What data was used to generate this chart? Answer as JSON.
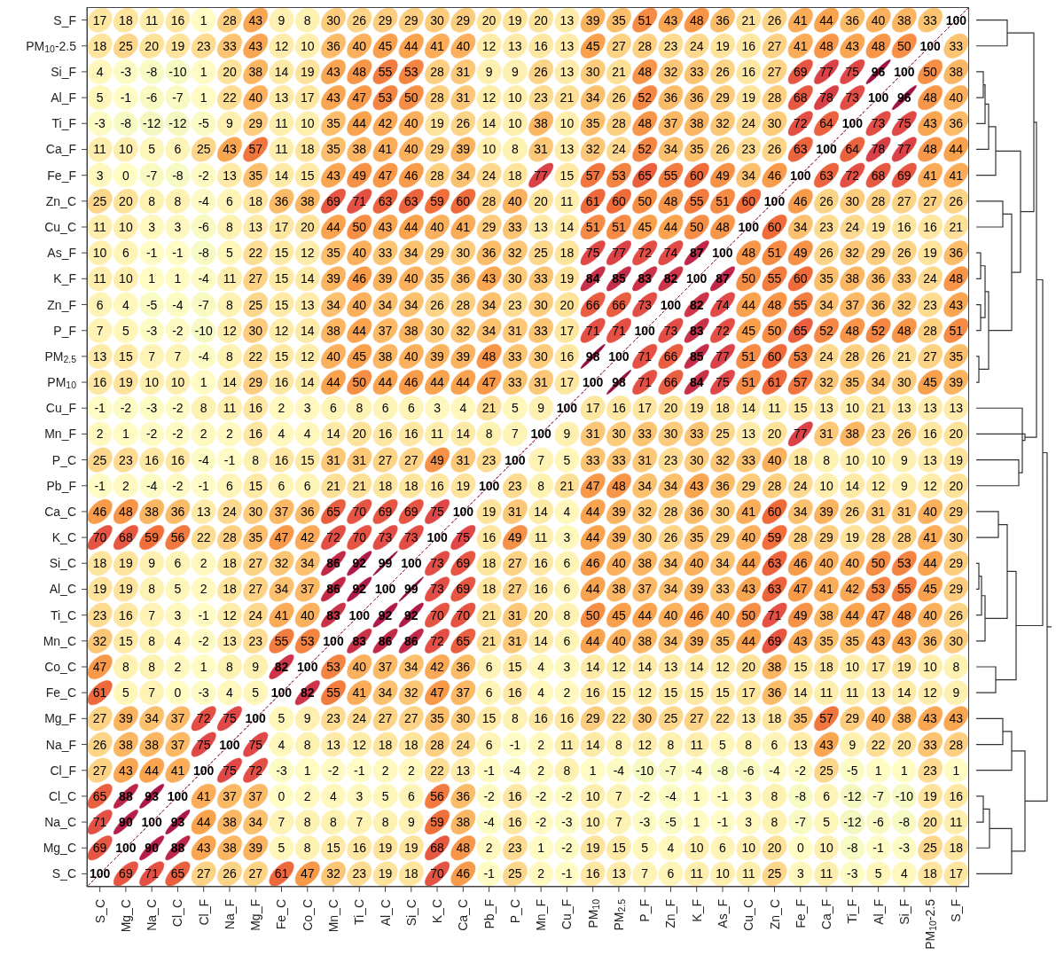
{
  "chart_data": {
    "type": "heatmap",
    "data_labels": true,
    "categories": [
      "S_C",
      "Mg_C",
      "Na_C",
      "Cl_C",
      "Cl_F",
      "Na_F",
      "Mg_F",
      "Fe_C",
      "Co_C",
      "Mn_C",
      "Ti_C",
      "Al_C",
      "Si_C",
      "K_C",
      "Ca_C",
      "Pb_F",
      "P_C",
      "Mn_F",
      "Cu_F",
      "PM$_{10}$",
      "PM$_{2.5}$",
      "P_F",
      "Zn_F",
      "K_F",
      "As_F",
      "Cu_C",
      "Zn_C",
      "Fe_F",
      "Ca_F",
      "Ti_F",
      "Al_F",
      "Si_F",
      "PM$_{10}$-2.5",
      "S_F"
    ],
    "y_categories": [
      "S_F",
      "PM$_{10}$-2.5",
      "Si_F",
      "Al_F",
      "Ti_F",
      "Ca_F",
      "Fe_F",
      "Zn_C",
      "Cu_C",
      "As_F",
      "K_F",
      "Zn_F",
      "P_F",
      "PM$_{2.5}$",
      "PM$_{10}$",
      "Cu_F",
      "Mn_F",
      "P_C",
      "Pb_F",
      "Ca_C",
      "K_C",
      "Si_C",
      "Al_C",
      "Ti_C",
      "Mn_C",
      "Co_C",
      "Fe_C",
      "Mg_F",
      "Na_F",
      "Cl_F",
      "Cl_C",
      "Na_C",
      "Mg_C",
      "S_C"
    ],
    "cells": [
      [
        17,
        18,
        11,
        16,
        1,
        28,
        43,
        9,
        8,
        30,
        26,
        29,
        29,
        30,
        29,
        20,
        19,
        20,
        13,
        39,
        35,
        51,
        43,
        48,
        36,
        21,
        26,
        41,
        44,
        36,
        40,
        38,
        33,
        100
      ],
      [
        18,
        25,
        20,
        19,
        23,
        33,
        43,
        12,
        10,
        36,
        40,
        45,
        44,
        41,
        40,
        12,
        13,
        16,
        13,
        45,
        27,
        28,
        23,
        24,
        19,
        16,
        27,
        41,
        48,
        43,
        48,
        50,
        100,
        33
      ],
      [
        4,
        -3,
        -8,
        -10,
        1,
        20,
        38,
        14,
        19,
        43,
        48,
        55,
        53,
        28,
        31,
        9,
        9,
        26,
        13,
        30,
        21,
        48,
        32,
        33,
        26,
        16,
        27,
        69,
        77,
        75,
        96,
        100,
        50,
        38
      ],
      [
        5,
        -1,
        -6,
        -7,
        1,
        22,
        40,
        13,
        17,
        43,
        47,
        53,
        50,
        28,
        31,
        12,
        10,
        23,
        21,
        34,
        26,
        52,
        36,
        36,
        29,
        19,
        28,
        68,
        78,
        73,
        100,
        96,
        48,
        40
      ],
      [
        -3,
        -8,
        -12,
        -12,
        -5,
        9,
        29,
        11,
        10,
        35,
        44,
        42,
        40,
        19,
        26,
        14,
        10,
        38,
        10,
        35,
        28,
        48,
        37,
        38,
        32,
        24,
        30,
        72,
        64,
        100,
        73,
        75,
        43,
        36
      ],
      [
        11,
        10,
        5,
        6,
        25,
        43,
        57,
        11,
        18,
        35,
        38,
        41,
        40,
        29,
        39,
        10,
        8,
        31,
        13,
        32,
        24,
        52,
        34,
        35,
        26,
        23,
        26,
        63,
        100,
        64,
        78,
        77,
        48,
        44
      ],
      [
        3,
        0,
        -7,
        -8,
        -2,
        13,
        35,
        14,
        15,
        43,
        49,
        47,
        46,
        28,
        34,
        24,
        18,
        77,
        15,
        57,
        53,
        65,
        55,
        60,
        49,
        34,
        46,
        100,
        63,
        72,
        68,
        69,
        41,
        41
      ],
      [
        25,
        20,
        8,
        8,
        -4,
        6,
        18,
        36,
        38,
        69,
        71,
        63,
        63,
        59,
        60,
        28,
        40,
        20,
        11,
        61,
        60,
        50,
        48,
        55,
        51,
        60,
        100,
        46,
        26,
        30,
        28,
        27,
        27,
        26
      ],
      [
        11,
        10,
        3,
        3,
        -6,
        8,
        13,
        17,
        20,
        44,
        50,
        43,
        44,
        40,
        41,
        29,
        33,
        13,
        14,
        51,
        51,
        45,
        44,
        50,
        48,
        100,
        60,
        34,
        23,
        24,
        19,
        16,
        16,
        21
      ],
      [
        10,
        6,
        -1,
        -1,
        -8,
        5,
        22,
        15,
        12,
        35,
        40,
        33,
        34,
        29,
        30,
        36,
        32,
        25,
        18,
        75,
        77,
        72,
        74,
        87,
        100,
        48,
        51,
        49,
        26,
        32,
        29,
        26,
        19,
        36
      ],
      [
        11,
        10,
        1,
        1,
        -4,
        11,
        27,
        15,
        14,
        39,
        46,
        39,
        40,
        35,
        36,
        43,
        30,
        33,
        19,
        84,
        85,
        83,
        82,
        100,
        87,
        50,
        55,
        60,
        35,
        38,
        36,
        33,
        24,
        48
      ],
      [
        6,
        4,
        -5,
        -4,
        -7,
        8,
        25,
        15,
        13,
        34,
        40,
        34,
        34,
        26,
        28,
        34,
        23,
        30,
        20,
        66,
        66,
        73,
        100,
        82,
        74,
        44,
        48,
        55,
        34,
        37,
        36,
        32,
        23,
        43
      ],
      [
        7,
        5,
        -3,
        -2,
        -10,
        12,
        30,
        12,
        14,
        38,
        44,
        37,
        38,
        30,
        32,
        34,
        31,
        33,
        17,
        71,
        71,
        100,
        73,
        83,
        72,
        45,
        50,
        65,
        52,
        48,
        52,
        48,
        28,
        51
      ],
      [
        13,
        15,
        7,
        7,
        -4,
        8,
        22,
        15,
        12,
        40,
        45,
        38,
        40,
        39,
        39,
        48,
        33,
        30,
        16,
        98,
        100,
        71,
        66,
        85,
        77,
        51,
        60,
        53,
        24,
        28,
        26,
        21,
        27,
        35
      ],
      [
        16,
        19,
        10,
        10,
        1,
        14,
        29,
        16,
        14,
        44,
        50,
        44,
        46,
        44,
        44,
        47,
        33,
        31,
        17,
        100,
        98,
        71,
        66,
        84,
        75,
        51,
        61,
        57,
        32,
        35,
        34,
        30,
        45,
        39
      ],
      [
        -1,
        -2,
        -3,
        -2,
        8,
        11,
        16,
        2,
        3,
        6,
        8,
        6,
        6,
        3,
        4,
        21,
        5,
        9,
        100,
        17,
        16,
        17,
        20,
        19,
        18,
        14,
        11,
        15,
        13,
        10,
        21,
        13,
        13,
        13
      ],
      [
        2,
        1,
        -2,
        -2,
        2,
        2,
        16,
        4,
        4,
        14,
        20,
        16,
        16,
        11,
        14,
        8,
        7,
        100,
        9,
        31,
        30,
        33,
        30,
        33,
        25,
        13,
        20,
        77,
        31,
        38,
        23,
        26,
        16,
        20
      ],
      [
        25,
        23,
        16,
        16,
        -4,
        -1,
        8,
        16,
        15,
        31,
        31,
        27,
        27,
        49,
        31,
        23,
        100,
        7,
        5,
        33,
        33,
        31,
        23,
        30,
        32,
        33,
        40,
        18,
        8,
        10,
        10,
        9,
        13,
        19
      ],
      [
        -1,
        2,
        -4,
        -2,
        -1,
        6,
        15,
        6,
        6,
        21,
        21,
        18,
        18,
        16,
        19,
        100,
        23,
        8,
        21,
        47,
        48,
        34,
        34,
        43,
        36,
        29,
        28,
        24,
        10,
        14,
        12,
        9,
        12,
        20
      ],
      [
        46,
        48,
        38,
        36,
        13,
        24,
        30,
        37,
        36,
        65,
        70,
        69,
        69,
        75,
        100,
        19,
        31,
        14,
        4,
        44,
        39,
        32,
        28,
        36,
        30,
        41,
        60,
        34,
        39,
        26,
        31,
        31,
        40,
        29
      ],
      [
        70,
        68,
        59,
        56,
        22,
        28,
        35,
        47,
        42,
        72,
        70,
        73,
        73,
        100,
        75,
        16,
        49,
        11,
        3,
        44,
        39,
        30,
        26,
        35,
        29,
        40,
        59,
        28,
        29,
        19,
        28,
        28,
        41,
        30
      ],
      [
        18,
        19,
        9,
        6,
        2,
        18,
        27,
        32,
        34,
        86,
        92,
        99,
        100,
        73,
        69,
        18,
        27,
        16,
        6,
        46,
        40,
        38,
        34,
        40,
        34,
        44,
        63,
        46,
        40,
        40,
        50,
        53,
        44,
        29
      ],
      [
        19,
        19,
        8,
        5,
        2,
        18,
        27,
        34,
        37,
        86,
        92,
        100,
        99,
        73,
        69,
        18,
        27,
        16,
        6,
        44,
        38,
        37,
        34,
        39,
        33,
        43,
        63,
        47,
        41,
        42,
        53,
        55,
        45,
        29
      ],
      [
        23,
        16,
        7,
        3,
        -1,
        12,
        24,
        41,
        40,
        83,
        100,
        92,
        92,
        70,
        70,
        21,
        31,
        20,
        8,
        50,
        45,
        44,
        40,
        46,
        40,
        50,
        71,
        49,
        38,
        44,
        47,
        48,
        40,
        26
      ],
      [
        32,
        15,
        8,
        4,
        -2,
        13,
        23,
        55,
        53,
        100,
        83,
        86,
        86,
        72,
        65,
        21,
        31,
        14,
        6,
        44,
        40,
        38,
        34,
        39,
        35,
        44,
        69,
        43,
        35,
        35,
        43,
        43,
        36,
        30
      ],
      [
        47,
        8,
        8,
        2,
        1,
        8,
        9,
        82,
        100,
        53,
        40,
        37,
        34,
        42,
        36,
        6,
        15,
        4,
        3,
        14,
        12,
        14,
        13,
        14,
        12,
        20,
        38,
        15,
        18,
        10,
        17,
        19,
        10,
        8
      ],
      [
        61,
        5,
        7,
        0,
        -3,
        4,
        5,
        100,
        82,
        55,
        41,
        34,
        32,
        47,
        37,
        6,
        16,
        4,
        2,
        16,
        15,
        12,
        15,
        15,
        15,
        17,
        36,
        14,
        11,
        11,
        13,
        14,
        12,
        9
      ],
      [
        27,
        39,
        34,
        37,
        72,
        75,
        100,
        5,
        9,
        23,
        24,
        27,
        27,
        35,
        30,
        15,
        8,
        16,
        16,
        29,
        22,
        30,
        25,
        27,
        22,
        13,
        18,
        35,
        57,
        29,
        40,
        38,
        43,
        43
      ],
      [
        26,
        38,
        38,
        37,
        75,
        100,
        75,
        4,
        8,
        13,
        12,
        18,
        18,
        28,
        24,
        6,
        -1,
        2,
        11,
        14,
        8,
        12,
        8,
        11,
        5,
        8,
        6,
        13,
        43,
        9,
        22,
        20,
        33,
        28
      ],
      [
        27,
        43,
        44,
        41,
        100,
        75,
        72,
        -3,
        1,
        -2,
        -1,
        2,
        2,
        22,
        13,
        -1,
        -4,
        2,
        8,
        1,
        -4,
        -10,
        -7,
        -4,
        -8,
        -6,
        -4,
        -2,
        25,
        -5,
        1,
        1,
        23,
        1
      ],
      [
        65,
        88,
        93,
        100,
        41,
        37,
        37,
        0,
        2,
        4,
        3,
        5,
        6,
        56,
        36,
        -2,
        16,
        -2,
        -2,
        10,
        7,
        -2,
        -4,
        1,
        -1,
        3,
        8,
        -8,
        6,
        -12,
        -7,
        -10,
        19,
        16
      ],
      [
        71,
        90,
        100,
        93,
        44,
        38,
        34,
        7,
        8,
        8,
        7,
        8,
        9,
        59,
        38,
        -4,
        16,
        -2,
        -3,
        10,
        7,
        -3,
        -5,
        1,
        -1,
        3,
        8,
        -7,
        5,
        -12,
        -6,
        -8,
        20,
        11
      ],
      [
        69,
        100,
        90,
        88,
        43,
        38,
        39,
        5,
        8,
        15,
        16,
        19,
        19,
        68,
        48,
        2,
        23,
        1,
        -2,
        19,
        15,
        5,
        4,
        10,
        6,
        10,
        20,
        0,
        10,
        -8,
        -1,
        -3,
        25,
        18
      ],
      [
        100,
        69,
        71,
        65,
        27,
        26,
        27,
        61,
        47,
        32,
        23,
        19,
        18,
        70,
        46,
        -1,
        25,
        2,
        -1,
        16,
        13,
        7,
        6,
        11,
        10,
        11,
        25,
        3,
        11,
        -3,
        5,
        4,
        18,
        17
      ]
    ]
  }
}
